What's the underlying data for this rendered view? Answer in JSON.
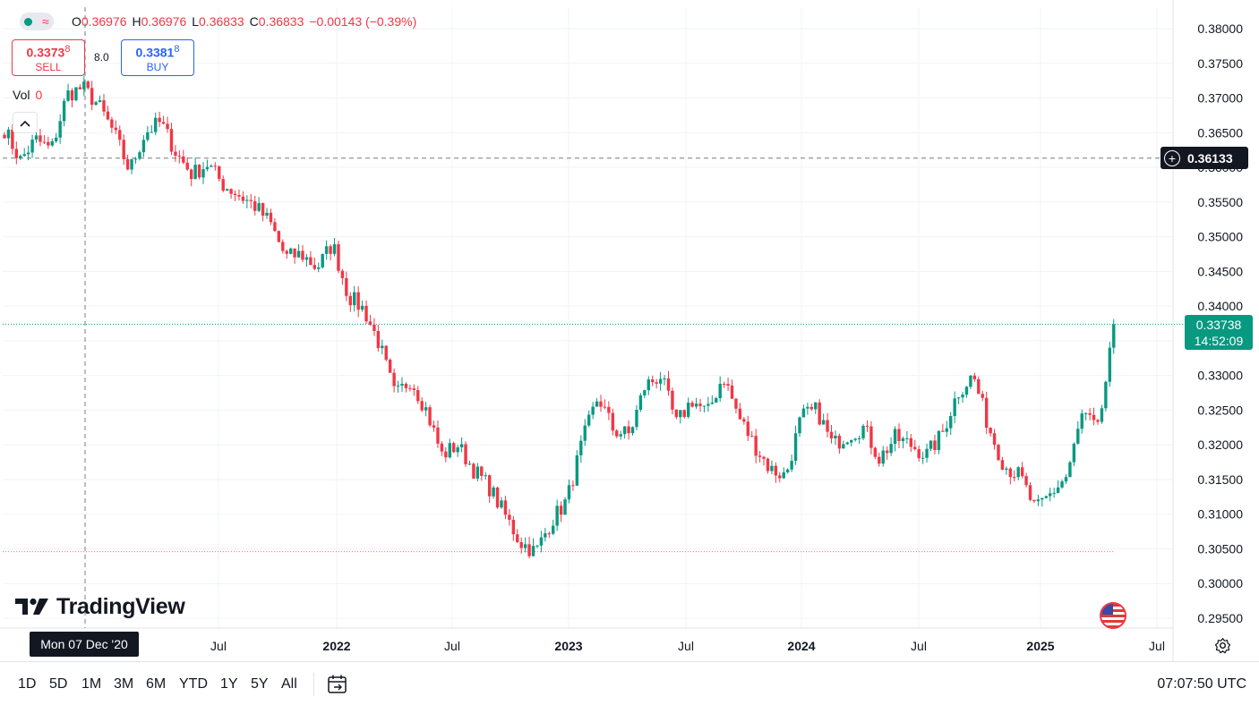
{
  "ohlc": {
    "o_label": "O",
    "o_value": "0.36976",
    "h_label": "H",
    "h_value": "0.36976",
    "l_label": "L",
    "l_value": "0.36833",
    "c_label": "C",
    "c_value": "0.36833",
    "change": "−0.00143 (−0.39%)"
  },
  "trade": {
    "sell_price": "0.3373",
    "sell_sup": "8",
    "sell_label": "SELL",
    "spread": "8.0",
    "buy_price": "0.3381",
    "buy_sup": "8",
    "buy_label": "BUY"
  },
  "volume": {
    "label": "Vol",
    "value": "0"
  },
  "crosshair_price": "0.36133",
  "crosshair_date": "Mon 07 Dec '20",
  "last_price": "0.33738",
  "countdown": "14:52:09",
  "logo_text": "TradingView",
  "toolbar": {
    "ranges": [
      "1D",
      "5D",
      "1M",
      "3M",
      "6M",
      "YTD",
      "1Y",
      "5Y",
      "All"
    ],
    "time": "07:07:50 UTC"
  },
  "colors": {
    "up": "#089981",
    "down": "#f23645",
    "text": "#131722",
    "grid": "#f0f3fa"
  },
  "chart_data": {
    "type": "candlestick",
    "title": "",
    "ylim": [
      0.295,
      0.3825
    ],
    "y_ticks": [
      "0.38000",
      "0.37500",
      "0.37000",
      "0.36500",
      "0.36000",
      "0.35500",
      "0.35000",
      "0.34500",
      "0.34000",
      "0.33500",
      "0.33000",
      "0.32500",
      "0.32000",
      "0.31500",
      "0.31000",
      "0.30500",
      "0.30000",
      "0.29500"
    ],
    "x_ticks": [
      {
        "label": "Jul",
        "bold": false
      },
      {
        "label": "2022",
        "bold": true
      },
      {
        "label": "Jul",
        "bold": false
      },
      {
        "label": "2023",
        "bold": true
      },
      {
        "label": "Jul",
        "bold": false
      },
      {
        "label": "2024",
        "bold": true
      },
      {
        "label": "Jul",
        "bold": false
      },
      {
        "label": "2025",
        "bold": true
      },
      {
        "label": "Jul",
        "bold": false
      }
    ],
    "anchors": [
      0.3655,
      0.361,
      0.364,
      0.3625,
      0.3705,
      0.3715,
      0.369,
      0.365,
      0.3595,
      0.365,
      0.3665,
      0.362,
      0.359,
      0.3605,
      0.3575,
      0.356,
      0.3545,
      0.352,
      0.347,
      0.3475,
      0.3455,
      0.349,
      0.3415,
      0.3395,
      0.3345,
      0.327,
      0.3295,
      0.325,
      0.3185,
      0.32,
      0.3165,
      0.314,
      0.31,
      0.306,
      0.3045,
      0.309,
      0.312,
      0.3205,
      0.327,
      0.322,
      0.3215,
      0.3285,
      0.33,
      0.323,
      0.3265,
      0.3245,
      0.33,
      0.324,
      0.32,
      0.3165,
      0.3155,
      0.324,
      0.325,
      0.32,
      0.3215,
      0.3225,
      0.318,
      0.321,
      0.32,
      0.3185,
      0.3215,
      0.3275,
      0.33,
      0.3225,
      0.317,
      0.3155,
      0.3105,
      0.313,
      0.3155,
      0.3245,
      0.322,
      0.3365
    ],
    "last_close": 0.33738,
    "reference_lines": [
      {
        "value": 0.36133,
        "style": "crosshair"
      },
      {
        "value": 0.33738,
        "style": "last-price"
      },
      {
        "value": 0.3046,
        "style": "low-marker"
      }
    ]
  }
}
